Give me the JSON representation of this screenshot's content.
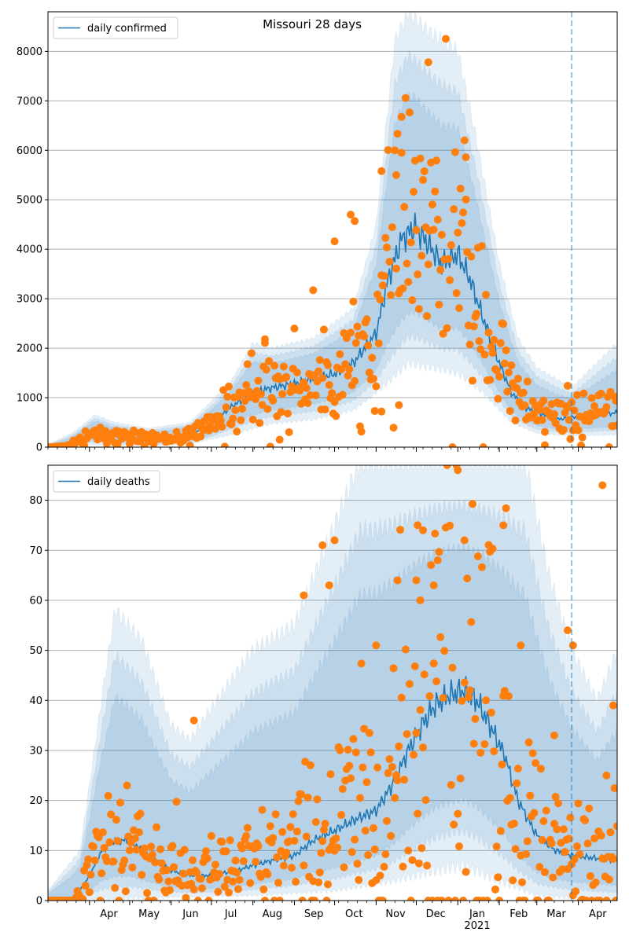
{
  "figure": {
    "title": "Missouri 28 days"
  },
  "colors": {
    "line": "#1f77b4",
    "points": "#ff7f0e",
    "band": "#1f77b4",
    "grid": "#b0b0b0",
    "marker_line": "#1f77b4"
  },
  "x_axis": {
    "month_ticks": [
      "Apr",
      "May",
      "Jun",
      "Jul",
      "Aug",
      "Sep",
      "Oct",
      "Nov",
      "Dec",
      "Jan",
      "Feb",
      "Mar",
      "Apr"
    ],
    "year_label": "2021"
  },
  "chart_data": [
    {
      "type": "line",
      "title": "Missouri 28 days",
      "legend": {
        "label": "daily confirmed",
        "placement": "top-left"
      },
      "ylim": [
        0,
        8800
      ],
      "yticks": [
        0,
        1000,
        2000,
        3000,
        4000,
        5000,
        6000,
        7000,
        8000
      ],
      "grid": true,
      "forecast_start": "2021-03-27",
      "x_range": [
        "2020-03-01",
        "2021-04-30"
      ],
      "line_anchors": [
        [
          "2020-03-01",
          0
        ],
        [
          "2020-03-15",
          20
        ],
        [
          "2020-03-25",
          150
        ],
        [
          "2020-04-01",
          280
        ],
        [
          "2020-04-08",
          320
        ],
        [
          "2020-04-15",
          230
        ],
        [
          "2020-05-01",
          200
        ],
        [
          "2020-05-15",
          170
        ],
        [
          "2020-06-01",
          180
        ],
        [
          "2020-06-15",
          260
        ],
        [
          "2020-07-01",
          450
        ],
        [
          "2020-07-15",
          800
        ],
        [
          "2020-08-01",
          1100
        ],
        [
          "2020-08-15",
          1200
        ],
        [
          "2020-09-01",
          1280
        ],
        [
          "2020-09-15",
          1380
        ],
        [
          "2020-10-01",
          1480
        ],
        [
          "2020-10-15",
          1700
        ],
        [
          "2020-11-01",
          2300
        ],
        [
          "2020-11-10",
          3400
        ],
        [
          "2020-11-20",
          4200
        ],
        [
          "2020-11-30",
          4450
        ],
        [
          "2020-12-10",
          4100
        ],
        [
          "2020-12-20",
          3700
        ],
        [
          "2021-01-01",
          3900
        ],
        [
          "2021-01-10",
          3400
        ],
        [
          "2021-01-20",
          2600
        ],
        [
          "2021-02-01",
          1700
        ],
        [
          "2021-02-10",
          1100
        ],
        [
          "2021-02-20",
          800
        ],
        [
          "2021-03-01",
          700
        ],
        [
          "2021-03-15",
          560
        ],
        [
          "2021-03-27",
          600
        ],
        [
          "2021-04-10",
          620
        ],
        [
          "2021-04-30",
          700
        ]
      ],
      "band_upper_anchors": [
        [
          "2020-03-01",
          50
        ],
        [
          "2020-03-20",
          300
        ],
        [
          "2020-04-05",
          650
        ],
        [
          "2020-04-20",
          500
        ],
        [
          "2020-05-15",
          380
        ],
        [
          "2020-06-15",
          500
        ],
        [
          "2020-07-15",
          1300
        ],
        [
          "2020-08-01",
          2100
        ],
        [
          "2020-08-15",
          2000
        ],
        [
          "2020-09-15",
          2200
        ],
        [
          "2020-10-15",
          2800
        ],
        [
          "2020-11-01",
          4500
        ],
        [
          "2020-11-15",
          8200
        ],
        [
          "2020-11-25",
          8800
        ],
        [
          "2020-12-10",
          8400
        ],
        [
          "2021-01-01",
          8000
        ],
        [
          "2021-01-15",
          6200
        ],
        [
          "2021-02-01",
          3700
        ],
        [
          "2021-02-15",
          2200
        ],
        [
          "2021-03-01",
          1600
        ],
        [
          "2021-03-27",
          1200
        ],
        [
          "2021-04-30",
          2100
        ]
      ],
      "band_lower_anchors": [
        [
          "2020-03-01",
          0
        ],
        [
          "2020-04-01",
          50
        ],
        [
          "2020-05-15",
          30
        ],
        [
          "2020-06-15",
          60
        ],
        [
          "2020-07-15",
          250
        ],
        [
          "2020-08-15",
          480
        ],
        [
          "2020-09-15",
          560
        ],
        [
          "2020-10-15",
          750
        ],
        [
          "2020-11-01",
          1100
        ],
        [
          "2020-11-25",
          1700
        ],
        [
          "2020-12-15",
          1600
        ],
        [
          "2021-01-01",
          1500
        ],
        [
          "2021-01-20",
          1100
        ],
        [
          "2021-02-10",
          500
        ],
        [
          "2021-03-01",
          280
        ],
        [
          "2021-03-27",
          230
        ],
        [
          "2021-04-30",
          250
        ]
      ],
      "noted_observations": [
        [
          "2020-12-10",
          7780
        ],
        [
          "2020-11-20",
          5950
        ],
        [
          "2020-11-05",
          5580
        ],
        [
          "2021-01-07",
          5860
        ],
        [
          "2020-11-16",
          5500
        ],
        [
          "2020-10-13",
          4700
        ],
        [
          "2020-10-16",
          4570
        ],
        [
          "2020-10-01",
          4160
        ],
        [
          "2020-08-10",
          2110
        ],
        [
          "2020-08-21",
          150
        ],
        [
          "2020-11-18",
          850
        ],
        [
          "2020-11-05",
          720
        ],
        [
          "2021-03-07",
          40
        ],
        [
          "2021-03-24",
          1240
        ],
        [
          "2020-06-15",
          30
        ]
      ]
    },
    {
      "type": "line",
      "legend": {
        "label": "daily deaths",
        "placement": "top-left"
      },
      "ylim": [
        0,
        87
      ],
      "yticks": [
        0,
        10,
        20,
        30,
        40,
        50,
        60,
        70,
        80
      ],
      "grid": true,
      "forecast_start": "2021-03-27",
      "x_range": [
        "2020-03-01",
        "2021-04-30"
      ],
      "line_anchors": [
        [
          "2020-03-01",
          0
        ],
        [
          "2020-03-20",
          0
        ],
        [
          "2020-04-01",
          5
        ],
        [
          "2020-04-10",
          10
        ],
        [
          "2020-04-20",
          12
        ],
        [
          "2020-05-01",
          12
        ],
        [
          "2020-05-15",
          9
        ],
        [
          "2020-06-01",
          6
        ],
        [
          "2020-06-15",
          5
        ],
        [
          "2020-07-01",
          5
        ],
        [
          "2020-07-20",
          6
        ],
        [
          "2020-08-01",
          7
        ],
        [
          "2020-08-15",
          8
        ],
        [
          "2020-09-01",
          9
        ],
        [
          "2020-09-15",
          12
        ],
        [
          "2020-10-01",
          14
        ],
        [
          "2020-10-15",
          16
        ],
        [
          "2020-11-01",
          18
        ],
        [
          "2020-11-15",
          24
        ],
        [
          "2020-11-25",
          30
        ],
        [
          "2020-12-05",
          35
        ],
        [
          "2020-12-15",
          39
        ],
        [
          "2020-12-25",
          41
        ],
        [
          "2021-01-05",
          42
        ],
        [
          "2021-01-15",
          40
        ],
        [
          "2021-01-25",
          35
        ],
        [
          "2021-02-05",
          29
        ],
        [
          "2021-02-15",
          20
        ],
        [
          "2021-03-01",
          13
        ],
        [
          "2021-03-15",
          10
        ],
        [
          "2021-03-27",
          9
        ],
        [
          "2021-04-30",
          8
        ]
      ],
      "band_upper_anchors": [
        [
          "2020-03-01",
          2
        ],
        [
          "2020-03-25",
          10
        ],
        [
          "2020-04-10",
          40
        ],
        [
          "2020-04-20",
          58
        ],
        [
          "2020-05-10",
          52
        ],
        [
          "2020-06-01",
          35
        ],
        [
          "2020-06-15",
          32
        ],
        [
          "2020-07-05",
          40
        ],
        [
          "2020-08-01",
          50
        ],
        [
          "2020-09-01",
          55
        ],
        [
          "2020-10-01",
          75
        ],
        [
          "2020-10-20",
          88
        ],
        [
          "2021-02-20",
          88
        ],
        [
          "2021-03-10",
          65
        ],
        [
          "2021-03-27",
          50
        ],
        [
          "2021-04-15",
          40
        ],
        [
          "2021-04-30",
          50
        ]
      ],
      "band_lower_anchors": [
        [
          "2020-03-01",
          0
        ],
        [
          "2020-05-01",
          0.5
        ],
        [
          "2020-08-01",
          1
        ],
        [
          "2020-10-01",
          2
        ],
        [
          "2020-11-15",
          4
        ],
        [
          "2020-12-15",
          6
        ],
        [
          "2021-01-05",
          7
        ],
        [
          "2021-02-01",
          4
        ],
        [
          "2021-03-01",
          1
        ],
        [
          "2021-04-30",
          0
        ]
      ],
      "noted_observations": [
        [
          "2021-01-01",
          86
        ],
        [
          "2021-04-19",
          83
        ],
        [
          "2020-12-02",
          75
        ],
        [
          "2021-02-04",
          75
        ],
        [
          "2021-01-06",
          72
        ],
        [
          "2020-10-01",
          72
        ],
        [
          "2020-09-22",
          71
        ],
        [
          "2020-12-06",
          74
        ],
        [
          "2020-12-17",
          68
        ],
        [
          "2020-11-17",
          64
        ],
        [
          "2020-12-01",
          64
        ],
        [
          "2020-12-14",
          63
        ],
        [
          "2020-09-27",
          63
        ],
        [
          "2020-09-08",
          61
        ],
        [
          "2020-12-04",
          60
        ],
        [
          "2021-03-24",
          54
        ],
        [
          "2021-03-28",
          51
        ],
        [
          "2021-02-17",
          51
        ],
        [
          "2020-11-01",
          51
        ],
        [
          "2020-06-18",
          36
        ],
        [
          "2021-04-27",
          39
        ],
        [
          "2021-04-22",
          25
        ],
        [
          "2021-03-14",
          33
        ]
      ]
    }
  ]
}
